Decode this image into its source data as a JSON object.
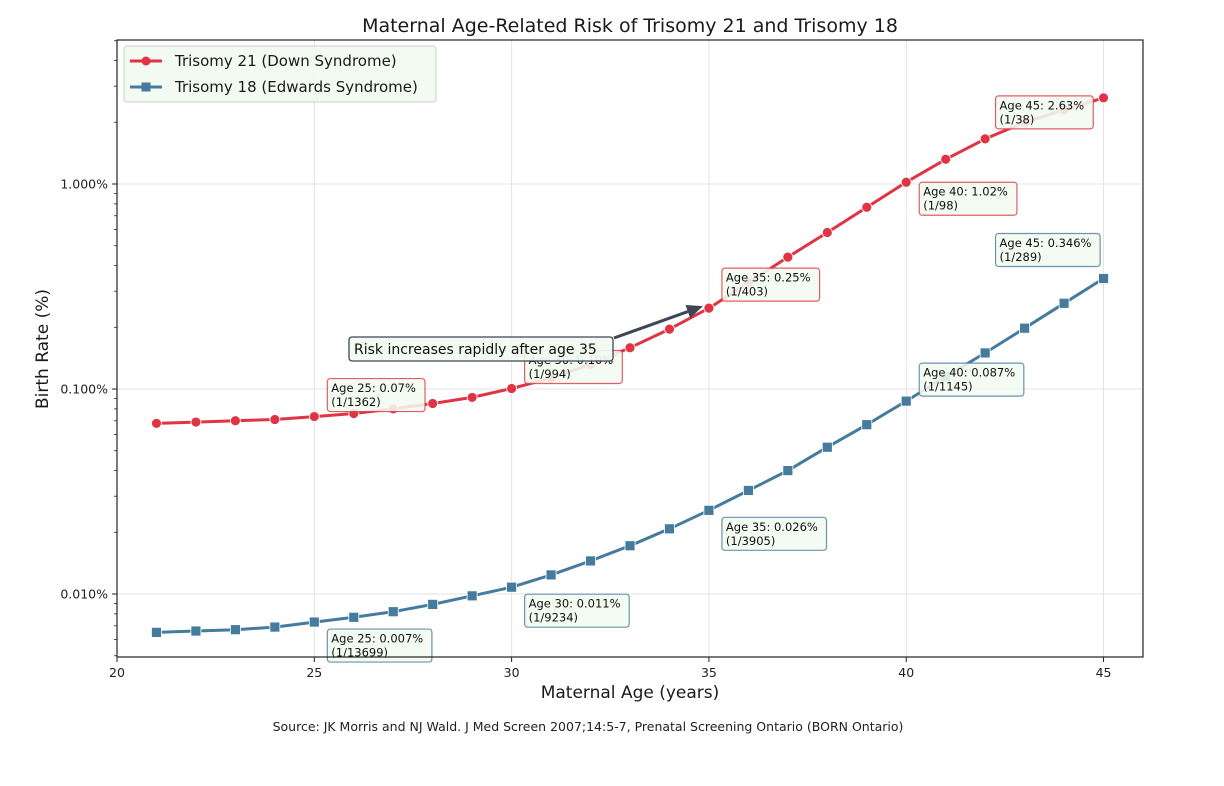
{
  "chart_data": {
    "type": "line",
    "title": "Maternal Age-Related Risk of Trisomy 21 and Trisomy 18",
    "xlabel": "Maternal Age (years)",
    "ylabel": "Birth Rate (%)",
    "yscale": "log",
    "xlim": [
      20,
      46
    ],
    "ylim": [
      0.00493,
      5.04
    ],
    "xticks": [
      20,
      25,
      30,
      35,
      40,
      45
    ],
    "xtick_labels": [
      "20",
      "25",
      "30",
      "35",
      "40",
      "45"
    ],
    "yticks": [
      0.01,
      0.1,
      1.0
    ],
    "ytick_labels": [
      "0.010%",
      "0.100%",
      "1.000%"
    ],
    "grid": true,
    "legend_position": "top-left",
    "x": [
      21,
      22,
      23,
      24,
      25,
      26,
      27,
      28,
      29,
      30,
      31,
      32,
      33,
      34,
      35,
      36,
      37,
      38,
      39,
      40,
      41,
      42,
      43,
      44,
      45
    ],
    "series": [
      {
        "name": "Trisomy 21 (Down Syndrome)",
        "color": "#e03444",
        "marker": "circle",
        "values": [
          0.068,
          0.069,
          0.07,
          0.071,
          0.0734,
          0.076,
          0.08,
          0.085,
          0.091,
          0.1006,
          0.113,
          0.132,
          0.159,
          0.196,
          0.248,
          0.33,
          0.44,
          0.58,
          0.77,
          1.02,
          1.32,
          1.66,
          2.0,
          2.3,
          2.63
        ]
      },
      {
        "name": "Trisomy 18 (Edwards Syndrome)",
        "color": "#457b9d",
        "marker": "square",
        "values": [
          0.0065,
          0.0066,
          0.0067,
          0.0069,
          0.0073,
          0.0077,
          0.0082,
          0.0089,
          0.0098,
          0.0108,
          0.0124,
          0.0145,
          0.0172,
          0.0208,
          0.0256,
          0.032,
          0.04,
          0.052,
          0.067,
          0.0873,
          0.115,
          0.15,
          0.198,
          0.262,
          0.346
        ]
      }
    ],
    "annotations": [
      {
        "series": 0,
        "age": 25,
        "line1": "Age 25: 0.07%",
        "line2": "(1/1362)"
      },
      {
        "series": 0,
        "age": 30,
        "line1": "Age 30: 0.10%",
        "line2": "(1/994)"
      },
      {
        "series": 0,
        "age": 35,
        "line1": "Age 35: 0.25%",
        "line2": "(1/403)"
      },
      {
        "series": 0,
        "age": 40,
        "line1": "Age 40: 1.02%",
        "line2": "(1/98)"
      },
      {
        "series": 0,
        "age": 45,
        "line1": "Age 45: 2.63%",
        "line2": "(1/38)"
      },
      {
        "series": 1,
        "age": 25,
        "line1": "Age 25: 0.007%",
        "line2": "(1/13699)"
      },
      {
        "series": 1,
        "age": 30,
        "line1": "Age 30: 0.011%",
        "line2": "(1/9234)"
      },
      {
        "series": 1,
        "age": 35,
        "line1": "Age 35: 0.026%",
        "line2": "(1/3905)"
      },
      {
        "series": 1,
        "age": 40,
        "line1": "Age 40: 0.087%",
        "line2": "(1/1145)"
      },
      {
        "series": 1,
        "age": 45,
        "line1": "Age 45: 0.346%",
        "line2": "(1/289)"
      }
    ],
    "callout": {
      "text": "Risk increases rapidly after age 35",
      "target_age": 35,
      "target_series": 0
    },
    "source": "Source: JK Morris and NJ Wald. J Med Screen 2007;14:5-7, Prenatal Screening Ontario (BORN Ontario)"
  },
  "colors": {
    "annotation_bg": "#f2faf0",
    "callout_border": "#3d4556",
    "arrow": "#3d4556"
  }
}
